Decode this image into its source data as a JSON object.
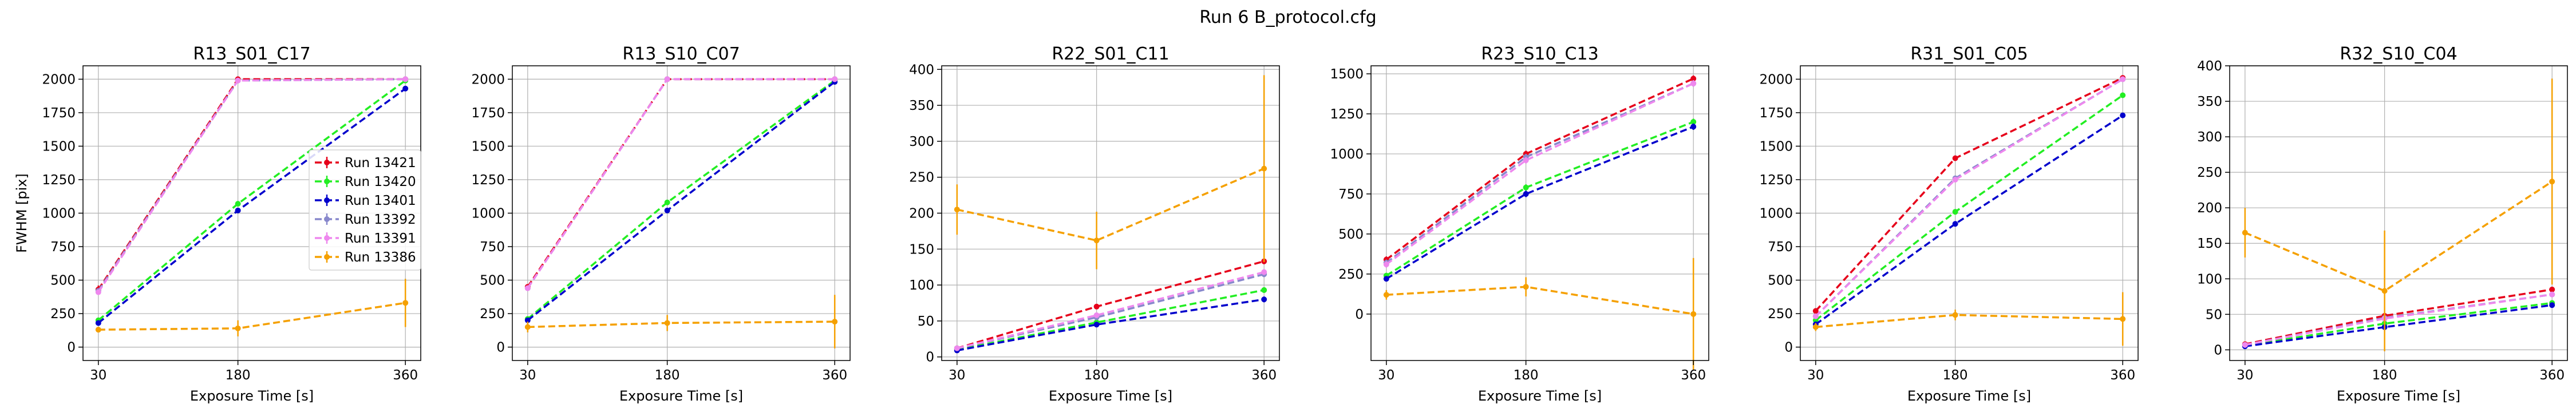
{
  "figure": {
    "suptitle": "Run 6 B_protocol.cfg"
  },
  "chart_data": [
    {
      "type": "line",
      "title": "R13_S01_C17",
      "xlabel": "Exposure Time [s]",
      "ylabel": "FWHM [pix]",
      "x": [
        30,
        180,
        360
      ],
      "xticks": [
        30,
        180,
        360
      ],
      "ylim": [
        -100,
        2100
      ],
      "yticks": [
        0,
        250,
        500,
        750,
        1000,
        1250,
        1500,
        1750,
        2000
      ],
      "grid": true,
      "legend": "center-right",
      "series": [
        {
          "name": "Run 13421",
          "color": "#e6001a",
          "values": [
            430,
            2000,
            2000
          ],
          "err": [
            30,
            10,
            10
          ]
        },
        {
          "name": "Run 13420",
          "color": "#22ee22",
          "values": [
            200,
            1070,
            1990
          ],
          "err": [
            15,
            20,
            10
          ]
        },
        {
          "name": "Run 13401",
          "color": "#0000cc",
          "values": [
            180,
            1020,
            1930
          ],
          "err": [
            15,
            20,
            15
          ]
        },
        {
          "name": "Run 13392",
          "color": "#8888cc",
          "values": [
            420,
            1990,
            2000
          ],
          "err": [
            20,
            10,
            10
          ]
        },
        {
          "name": "Run 13391",
          "color": "#ee88ee",
          "values": [
            410,
            1990,
            2000
          ],
          "err": [
            20,
            10,
            10
          ]
        },
        {
          "name": "Run 13386",
          "color": "#f5a000",
          "values": [
            130,
            140,
            330
          ],
          "err": [
            20,
            60,
            180
          ]
        }
      ]
    },
    {
      "type": "line",
      "title": "R13_S10_C07",
      "xlabel": "Exposure Time [s]",
      "x": [
        30,
        180,
        360
      ],
      "xticks": [
        30,
        180,
        360
      ],
      "ylim": [
        -100,
        2100
      ],
      "yticks": [
        0,
        250,
        500,
        750,
        1000,
        1250,
        1500,
        1750,
        2000
      ],
      "grid": true,
      "series": [
        {
          "color": "#e6001a",
          "values": [
            450,
            2000,
            2000
          ],
          "err": [
            20,
            10,
            10
          ]
        },
        {
          "color": "#22ee22",
          "values": [
            210,
            1080,
            1990
          ],
          "err": [
            15,
            20,
            10
          ]
        },
        {
          "color": "#0000cc",
          "values": [
            200,
            1020,
            1980
          ],
          "err": [
            15,
            20,
            10
          ]
        },
        {
          "color": "#8888cc",
          "values": [
            440,
            2000,
            2000
          ],
          "err": [
            20,
            10,
            10
          ]
        },
        {
          "color": "#ee88ee",
          "values": [
            440,
            2000,
            2000
          ],
          "err": [
            20,
            10,
            10
          ]
        },
        {
          "color": "#f5a000",
          "values": [
            150,
            180,
            190
          ],
          "err": [
            40,
            60,
            200
          ]
        }
      ]
    },
    {
      "type": "line",
      "title": "R22_S01_C11",
      "xlabel": "Exposure Time [s]",
      "x": [
        30,
        180,
        360
      ],
      "xticks": [
        30,
        180,
        360
      ],
      "ylim": [
        -5,
        405
      ],
      "yticks": [
        0,
        50,
        100,
        150,
        200,
        250,
        300,
        350,
        400
      ],
      "grid": true,
      "series": [
        {
          "color": "#e6001a",
          "values": [
            12,
            70,
            133
          ],
          "err": [
            2,
            3,
            4
          ]
        },
        {
          "color": "#22ee22",
          "values": [
            10,
            48,
            93
          ],
          "err": [
            2,
            3,
            4
          ]
        },
        {
          "color": "#0000cc",
          "values": [
            9,
            45,
            80
          ],
          "err": [
            2,
            3,
            4
          ]
        },
        {
          "color": "#8888cc",
          "values": [
            12,
            55,
            115
          ],
          "err": [
            2,
            3,
            4
          ]
        },
        {
          "color": "#ee88ee",
          "values": [
            12,
            58,
            118
          ],
          "err": [
            2,
            3,
            4
          ]
        },
        {
          "color": "#f5a000",
          "values": [
            205,
            162,
            262
          ],
          "err": [
            35,
            40,
            130
          ]
        }
      ]
    },
    {
      "type": "line",
      "title": "R23_S10_C13",
      "xlabel": "Exposure Time [s]",
      "x": [
        30,
        180,
        360
      ],
      "xticks": [
        30,
        180,
        360
      ],
      "ylim": [
        -290,
        1550
      ],
      "yticks": [
        0,
        250,
        500,
        750,
        1000,
        1250,
        1500
      ],
      "grid": true,
      "series": [
        {
          "color": "#e6001a",
          "values": [
            340,
            1000,
            1470
          ],
          "err": [
            20,
            20,
            20
          ]
        },
        {
          "color": "#22ee22",
          "values": [
            240,
            790,
            1200
          ],
          "err": [
            15,
            20,
            20
          ]
        },
        {
          "color": "#0000cc",
          "values": [
            220,
            750,
            1170
          ],
          "err": [
            15,
            20,
            20
          ]
        },
        {
          "color": "#8888cc",
          "values": [
            320,
            980,
            1440
          ],
          "err": [
            20,
            20,
            20
          ]
        },
        {
          "color": "#ee88ee",
          "values": [
            310,
            960,
            1440
          ],
          "err": [
            20,
            20,
            20
          ]
        },
        {
          "color": "#f5a000",
          "values": [
            120,
            170,
            0
          ],
          "err": [
            30,
            60,
            350
          ]
        }
      ]
    },
    {
      "type": "line",
      "title": "R31_S01_C05",
      "xlabel": "Exposure Time [s]",
      "x": [
        30,
        180,
        360
      ],
      "xticks": [
        30,
        180,
        360
      ],
      "ylim": [
        -100,
        2100
      ],
      "yticks": [
        0,
        250,
        500,
        750,
        1000,
        1250,
        1500,
        1750,
        2000
      ],
      "grid": true,
      "series": [
        {
          "color": "#e6001a",
          "values": [
            270,
            1410,
            2010
          ],
          "err": [
            20,
            20,
            10
          ]
        },
        {
          "color": "#22ee22",
          "values": [
            200,
            1010,
            1880
          ],
          "err": [
            15,
            20,
            15
          ]
        },
        {
          "color": "#0000cc",
          "values": [
            170,
            920,
            1730
          ],
          "err": [
            15,
            20,
            15
          ]
        },
        {
          "color": "#8888cc",
          "values": [
            230,
            1260,
            2000
          ],
          "err": [
            20,
            20,
            10
          ]
        },
        {
          "color": "#ee88ee",
          "values": [
            230,
            1250,
            2000
          ],
          "err": [
            20,
            20,
            10
          ]
        },
        {
          "color": "#f5a000",
          "values": [
            150,
            240,
            210
          ],
          "err": [
            30,
            40,
            200
          ]
        }
      ]
    },
    {
      "type": "line",
      "title": "R32_S10_C04",
      "xlabel": "Exposure Time [s]",
      "x": [
        30,
        180,
        360
      ],
      "xticks": [
        30,
        180,
        360
      ],
      "ylim": [
        -15,
        400
      ],
      "yticks": [
        0,
        50,
        100,
        150,
        200,
        250,
        300,
        350,
        400
      ],
      "grid": true,
      "series": [
        {
          "color": "#e6001a",
          "values": [
            8,
            48,
            85
          ],
          "err": [
            2,
            3,
            3
          ]
        },
        {
          "color": "#22ee22",
          "values": [
            6,
            37,
            66
          ],
          "err": [
            2,
            3,
            3
          ]
        },
        {
          "color": "#0000cc",
          "values": [
            5,
            32,
            63
          ],
          "err": [
            2,
            3,
            3
          ]
        },
        {
          "color": "#8888cc",
          "values": [
            7,
            45,
            78
          ],
          "err": [
            2,
            3,
            3
          ]
        },
        {
          "color": "#ee88ee",
          "values": [
            7,
            44,
            78
          ],
          "err": [
            2,
            3,
            3
          ]
        },
        {
          "color": "#f5a000",
          "values": [
            165,
            83,
            237
          ],
          "err": [
            35,
            85,
            145
          ]
        }
      ]
    }
  ]
}
